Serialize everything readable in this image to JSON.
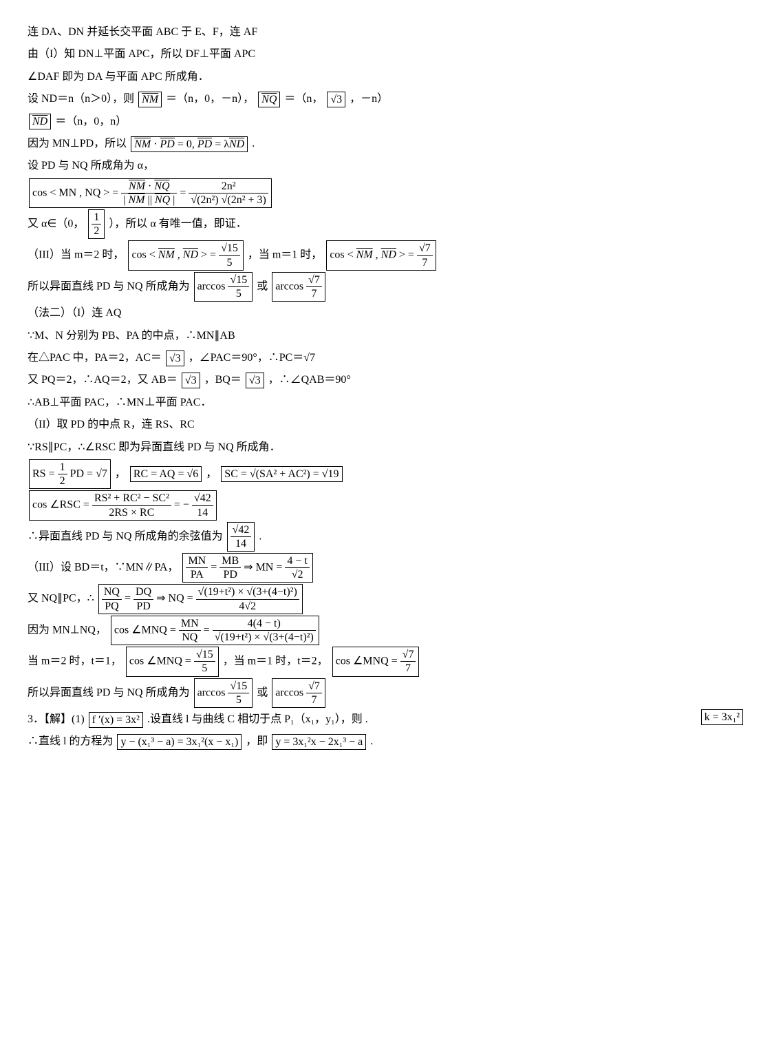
{
  "doc": {
    "l1": "连 DA、DN 并延长交平面 ABC 于 E、F，连 AF",
    "l2": "由（I）知 DN⊥平面 APC，所以 DF⊥平面 APC",
    "l3": "∠DAF 即为 DA 与平面 APC 所成角．",
    "l4_a": "设 ND＝n（n＞0），则",
    "l4_b": "＝（n，0，－n），",
    "l4_c": "＝（n，",
    "l4_d": "，－n）",
    "l5_a": "＝（n，0，n）",
    "l6": "设 PD 与 NQ 所成角为 α，",
    "l7_a": "因为 MN⊥PD，所以",
    "l7_b": ".",
    "l8_a": "又 α∈（0，",
    "l8_b": "），所以 α 有唯一值，即证．",
    "l9_a": "（III）当 m＝2 时，",
    "l9_b": "，当 m＝1 时，",
    "l10_a": "所以异面直线 PD 与 NQ 所成角为",
    "l10_b": "或",
    "l11": "（法二）（I）连 AQ",
    "l12": "∵M、N 分别为 PB、PA 的中点，∴MN∥AB",
    "l13_a": "在△PAC 中，PA＝2，AC＝",
    "l13_b": "，∠PAC＝90°，∴PC＝√7",
    "l14_a": "又 PQ＝2，∴AQ＝2，又 AB＝",
    "l14_b": "，BQ＝",
    "l14_c": "，∴∠QAB＝90°",
    "l15": "∴AB⊥平面 PAC，∴MN⊥平面 PAC．",
    "l16": "（II）取 PD 的中点 R，连 RS、RC",
    "l17": "∵RS∥PC，∴∠RSC 即为异面直线 PD 与 NQ 所成角．",
    "l18_a": "，",
    "l18_b": "，",
    "l19": "∴异面直线 PD 与 NQ 所成角的余弦值为",
    "l19_b": ".",
    "l20_a": "（III）设 BD＝t，∵MN∥PA，",
    "l21": "又 NQ∥PC，∴",
    "l22": "因为 MN⊥NQ，",
    "l23_a": "当 m＝2 时，t＝1，",
    "l23_b": "，当 m＝1 时，t＝2，",
    "l24_a": "所以异面直线 PD 与 NQ 所成角为",
    "l24_b": "或",
    "l25a": "3．【解】(1)",
    "l25b": ".设直线 l 与曲线 C 相切于点 P₁（x₁，y₁），则",
    "l25c": ".",
    "l26_a": "∴直线 l 的方程为",
    "l26_b": "，即",
    "l26_c": "."
  },
  "math": {
    "NM": "NM",
    "NQ": "NQ",
    "ND": "ND",
    "sqrt3": "√3",
    "eq1": "NM · PD = 0，PD = λND",
    "cos_mn_nq_lhs": "cos < MN , NQ > =",
    "frac_nm_nq_num": "NM · NQ",
    "frac_nm_nq_den": "| NM || NQ |",
    "frac_2n2_num": "2n²",
    "frac_2n2_den": "√(2n²) √(2n² + 3)",
    "half_num": "1",
    "half_den": "2",
    "cos_nm_nd": "cos < NM , ND > =",
    "sqrt15_5_num": "√15",
    "sqrt15_5_den": "5",
    "sqrt7_7_num": "√7",
    "sqrt7_7_den": "7",
    "arccos": "arccos",
    "rs_eq": "RS = ½ PD = √7",
    "rc_eq": "RC = AQ = √6",
    "sc_eq": "SC = √(SA² + AC²) = √19",
    "cos_rsc_lhs": "cos ∠RSC =",
    "cos_rsc_num": "RS² + RC² − SC²",
    "cos_rsc_den": "2RS × RC",
    "cos_rsc_rhs": "= −",
    "sqrt42_14_num": "√42",
    "sqrt42_14_den": "14",
    "mn_pa_num": "MN",
    "mn_pa_den": "PA",
    "mb_pd_num": "MB",
    "mb_pd_den": "PD",
    "mn_val_num": "4 − t",
    "mn_val_den": "√2",
    "nq_pq_num": "NQ",
    "nq_pq_den": "PQ",
    "dq_pd_num": "DQ",
    "dq_pd_den": "PD",
    "nq_val_num": "√(19+t²) × √(3+(4−t)²)",
    "nq_val_den": "4√2",
    "cos_mnq_lhs": "cos ∠MNQ =",
    "mn_nq_num": "MN",
    "mn_nq_den": "NQ",
    "cos_mnq_num": "4(4 − t)",
    "cos_mnq_den": "√(19+t²) × √(3+(4−t)²)",
    "fprime": "f ′(x) = 3x²",
    "k_eq": "k = 3x₁²",
    "tangent": "y − (x₁³ − a) = 3x₁²(x − x₁)",
    "tangent2": "y = 3x₁²x − 2x₁³ − a"
  }
}
